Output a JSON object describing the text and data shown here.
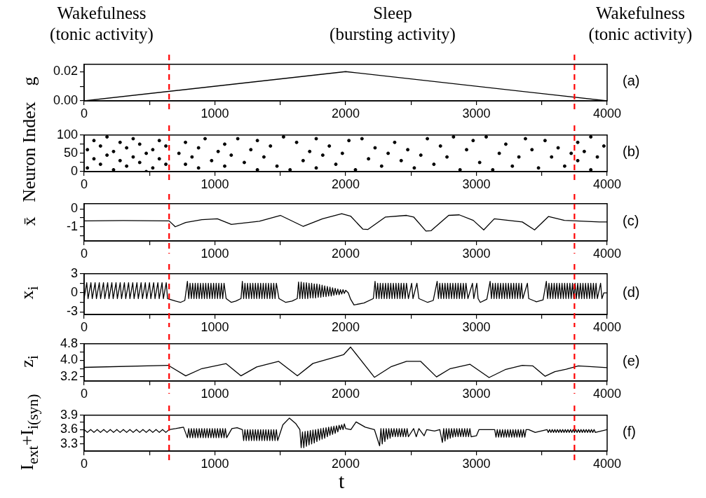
{
  "chart_data": [
    {
      "type": "line",
      "ylabel": "g",
      "annotations": [
        "Wakefulness\n(tonic activity)",
        "Sleep\n(bursting activity)",
        "Wakefulness\n(tonic activity)",
        "(a)"
      ],
      "xlim": [
        0,
        4000
      ],
      "xticks": [
        0,
        {
          "value": 500,
          "label": null
        },
        1000,
        {
          "value": 1500,
          "label": null
        },
        2000,
        {
          "value": 2500,
          "label": null
        },
        3000,
        {
          "value": 3500,
          "label": null
        },
        4000
      ],
      "ylim": [
        0,
        0.025
      ],
      "yticks": [
        {
          "value": 0,
          "label": "0.00"
        },
        {
          "value": 0.01,
          "label": null
        },
        0.02
      ],
      "ref_lines": [
        {
          "axis": "x",
          "value": 650,
          "color": "#ff0000",
          "line_style": "dashed"
        },
        {
          "axis": "x",
          "value": 3750,
          "color": "#ff0000",
          "line_style": "dashed"
        }
      ],
      "series": [
        {
          "color": "#000000",
          "x": [
            0,
            2000,
            4000
          ],
          "values": [
            0,
            0.02,
            0
          ]
        }
      ]
    },
    {
      "type": "scatter",
      "marker": "circle",
      "ylabel": "Neuron Index",
      "annotations": [
        "(b)"
      ],
      "xlim": [
        0,
        4000
      ],
      "xticks": [
        0,
        {
          "value": 500,
          "label": null
        },
        1000,
        {
          "value": 1500,
          "label": null
        },
        2000,
        {
          "value": 2500,
          "label": null
        },
        3000,
        {
          "value": 3500,
          "label": null
        },
        4000
      ],
      "ylim": [
        0,
        100
      ],
      "yticks": [
        0,
        {
          "value": 25,
          "label": null
        },
        50,
        {
          "value": 75,
          "label": null
        },
        100
      ],
      "ref_lines": [
        {
          "axis": "x",
          "value": 650,
          "color": "#ff0000",
          "line_style": "dashed"
        },
        {
          "axis": "x",
          "value": 3750,
          "color": "#ff0000",
          "line_style": "dashed"
        }
      ],
      "series": [
        {
          "color": "#000000",
          "x": [
            25,
            25,
            75,
            75,
            125,
            125,
            175,
            175,
            225,
            225,
            275,
            275,
            325,
            325,
            375,
            375,
            425,
            425,
            475,
            475,
            525,
            525,
            575,
            575,
            625,
            625,
            725,
            775,
            775,
            825,
            875,
            875,
            925,
            975,
            1025,
            1075,
            1075,
            1125,
            1175,
            1225,
            1275,
            1325,
            1325,
            1375,
            1425,
            1475,
            1525,
            1575,
            1625,
            1675,
            1725,
            1775,
            1775,
            1825,
            1875,
            1925,
            1975,
            2025,
            2075,
            2125,
            2175,
            2225,
            2275,
            2325,
            2375,
            2425,
            2475,
            2525,
            2575,
            2625,
            2675,
            2725,
            2775,
            2825,
            2875,
            2925,
            2975,
            3025,
            3075,
            3125,
            3175,
            3225,
            3275,
            3325,
            3375,
            3425,
            3475,
            3525,
            3575,
            3625,
            3675,
            3725,
            3775,
            3775,
            3825,
            3875,
            3875,
            3925,
            3975
          ],
          "values": [
            10,
            60,
            35,
            85,
            20,
            70,
            45,
            95,
            5,
            55,
            30,
            80,
            15,
            65,
            40,
            90,
            25,
            75,
            50,
            0,
            10,
            60,
            35,
            85,
            20,
            70,
            50,
            20,
            80,
            40,
            65,
            10,
            90,
            30,
            55,
            75,
            15,
            45,
            90,
            25,
            60,
            5,
            85,
            40,
            70,
            15,
            95,
            5,
            80,
            30,
            55,
            10,
            90,
            45,
            70,
            20,
            50,
            85,
            5,
            90,
            35,
            65,
            15,
            50,
            80,
            30,
            60,
            10,
            45,
            90,
            20,
            70,
            40,
            95,
            5,
            60,
            85,
            25,
            95,
            5,
            50,
            75,
            15,
            40,
            90,
            60,
            10,
            85,
            40,
            65,
            15,
            50,
            30,
            80,
            55,
            5,
            95,
            40,
            70
          ]
        }
      ]
    },
    {
      "type": "line",
      "ylabel": "x̄",
      "annotations": [
        "(c)"
      ],
      "xlim": [
        0,
        4000
      ],
      "xticks": [
        0,
        {
          "value": 500,
          "label": null
        },
        1000,
        {
          "value": 1500,
          "label": null
        },
        2000,
        {
          "value": 2500,
          "label": null
        },
        3000,
        {
          "value": 3500,
          "label": null
        },
        4000
      ],
      "ylim": [
        -1.8,
        0.3
      ],
      "yticks": [
        0,
        {
          "value": -0.5,
          "label": null
        },
        -1,
        {
          "value": -1.5,
          "label": null
        }
      ],
      "ref_lines": [
        {
          "axis": "x",
          "value": 650,
          "color": "#ff0000",
          "line_style": "dashed"
        },
        {
          "axis": "x",
          "value": 3750,
          "color": "#ff0000",
          "line_style": "dashed"
        }
      ],
      "series": [
        {
          "color": "#000000",
          "x": [
            0,
            300,
            650,
            697,
            777,
            900,
            1019,
            1126,
            1340,
            1501,
            1676,
            1823,
            1970,
            2038,
            2131,
            2171,
            2305,
            2466,
            2520,
            2614,
            2654,
            2788,
            2869,
            2976,
            3056,
            3137,
            3351,
            3445,
            3552,
            3673,
            3941,
            4000
          ],
          "values": [
            -0.67,
            -0.65,
            -0.67,
            -1.0,
            -0.76,
            -0.6,
            -0.55,
            -0.87,
            -0.69,
            -0.36,
            -0.98,
            -0.55,
            -0.27,
            -0.4,
            -1.13,
            -1.15,
            -0.45,
            -0.36,
            -0.45,
            -1.24,
            -1.22,
            -0.36,
            -0.33,
            -0.64,
            -1.18,
            -0.55,
            -0.73,
            -1.18,
            -0.42,
            -0.64,
            -0.73,
            -0.73
          ]
        }
      ]
    },
    {
      "type": "line",
      "ylabel": "x$_{i}$",
      "annotations": [
        "(d)"
      ],
      "xlim": [
        0,
        4000
      ],
      "xticks": [
        0,
        {
          "value": 500,
          "label": null
        },
        1000,
        {
          "value": 1500,
          "label": null
        },
        2000,
        {
          "value": 2500,
          "label": null
        },
        3000,
        {
          "value": 3500,
          "label": null
        },
        4000
      ],
      "ylim": [
        -3.4,
        3
      ],
      "yticks": [
        -3,
        {
          "value": -1.5,
          "label": null
        },
        0,
        {
          "value": 1.5,
          "label": null
        },
        3
      ],
      "ref_lines": [
        {
          "axis": "x",
          "value": 650,
          "color": "#ff0000",
          "line_style": "dashed"
        },
        {
          "axis": "x",
          "value": 3750,
          "color": "#ff0000",
          "line_style": "dashed"
        }
      ],
      "series": [
        {
          "color": "#000000",
          "x": [
            0,
            20,
            30,
            52,
            62,
            84,
            94,
            116,
            126,
            148,
            158,
            180,
            190,
            212,
            222,
            244,
            254,
            276,
            286,
            308,
            318,
            340,
            350,
            372,
            382,
            404,
            414,
            436,
            446,
            468,
            478,
            500,
            510,
            532,
            542,
            564,
            574,
            596,
            606,
            628,
            638,
            700,
            737,
            770,
            790,
            800,
            810,
            820,
            830,
            840,
            850,
            860,
            870,
            880,
            890,
            900,
            910,
            920,
            930,
            940,
            950,
            960,
            970,
            980,
            990,
            1000,
            1010,
            1020,
            1030,
            1040,
            1050,
            1060,
            1070,
            1086,
            1126,
            1160,
            1200,
            1210,
            1220,
            1230,
            1240,
            1250,
            1260,
            1270,
            1280,
            1290,
            1300,
            1310,
            1320,
            1330,
            1340,
            1350,
            1360,
            1370,
            1380,
            1390,
            1400,
            1410,
            1420,
            1430,
            1440,
            1450,
            1460,
            1470,
            1490,
            1542,
            1590,
            1630,
            1640,
            1650,
            1660,
            1670,
            1680,
            1690,
            1700,
            1710,
            1720,
            1730,
            1740,
            1750,
            1760,
            1770,
            1780,
            1790,
            1800,
            1810,
            1820,
            1830,
            1840,
            1850,
            1860,
            1870,
            1880,
            1890,
            1900,
            1910,
            1920,
            1930,
            1940,
            1950,
            1960,
            1970,
            1980,
            1990,
            2000,
            2020,
            2038,
            2064,
            2140,
            2212,
            2225,
            2235,
            2245,
            2255,
            2265,
            2275,
            2285,
            2295,
            2305,
            2315,
            2325,
            2335,
            2345,
            2355,
            2365,
            2375,
            2385,
            2395,
            2405,
            2415,
            2425,
            2435,
            2445,
            2455,
            2465,
            2480,
            2505,
            2515,
            2545,
            2560,
            2627,
            2670,
            2700,
            2710,
            2720,
            2730,
            2740,
            2750,
            2760,
            2770,
            2780,
            2790,
            2800,
            2810,
            2820,
            2830,
            2840,
            2850,
            2860,
            2870,
            2880,
            2890,
            2900,
            2910,
            2920,
            2935,
            2970,
            2980,
            3003,
            3013,
            3030,
            3080,
            3105,
            3115,
            3125,
            3135,
            3145,
            3155,
            3165,
            3175,
            3185,
            3195,
            3205,
            3215,
            3225,
            3235,
            3245,
            3255,
            3265,
            3275,
            3285,
            3295,
            3305,
            3315,
            3325,
            3335,
            3345,
            3355,
            3390,
            3400,
            3459,
            3510,
            3535,
            3545,
            3555,
            3565,
            3575,
            3585,
            3595,
            3605,
            3615,
            3625,
            3635,
            3645,
            3655,
            3665,
            3675,
            3685,
            3695,
            3705,
            3715,
            3725,
            3735,
            3745,
            3755,
            3765,
            3775,
            3785,
            3795,
            3805,
            3815,
            3825,
            3835,
            3845,
            3855,
            3865,
            3875,
            3885,
            3895,
            3905,
            3915,
            3925,
            3950,
            3960,
            3975,
            4000
          ],
          "values": [
            -0.9,
            1.6,
            -0.9,
            1.6,
            -0.9,
            1.6,
            -0.9,
            1.6,
            -0.9,
            1.6,
            -0.9,
            1.6,
            -0.9,
            1.6,
            -0.9,
            1.6,
            -0.9,
            1.6,
            -0.9,
            1.6,
            -0.9,
            1.6,
            -0.9,
            1.6,
            -0.9,
            1.6,
            -0.9,
            1.6,
            -0.9,
            1.6,
            -0.9,
            1.6,
            -0.9,
            1.6,
            -0.9,
            1.6,
            -0.9,
            1.6,
            -0.9,
            1.6,
            -0.9,
            -1.3,
            -1.5,
            -1.2,
            1.8,
            -0.9,
            1.5,
            -0.9,
            1.5,
            -0.9,
            1.5,
            -0.9,
            1.5,
            -0.9,
            1.5,
            -0.9,
            1.5,
            -0.9,
            1.5,
            -0.9,
            1.5,
            -0.9,
            1.5,
            -0.9,
            1.5,
            -0.9,
            1.5,
            -0.9,
            1.5,
            -0.9,
            1.5,
            -0.9,
            1.5,
            -0.9,
            -1.5,
            -1.3,
            -0.9,
            1.8,
            -0.9,
            1.5,
            -0.9,
            1.5,
            -0.9,
            1.5,
            -0.9,
            1.5,
            -0.9,
            1.5,
            -0.9,
            1.5,
            -0.9,
            1.5,
            -0.9,
            1.5,
            -0.9,
            1.5,
            -0.9,
            1.5,
            -0.9,
            1.5,
            -0.9,
            1.5,
            -0.9,
            1.5,
            -0.9,
            -1.5,
            -1.3,
            -0.9,
            1.7,
            -0.9,
            1.7,
            -0.9,
            1.6,
            -0.9,
            1.6,
            -0.9,
            1.5,
            -0.8,
            1.5,
            -0.8,
            1.4,
            -0.8,
            1.4,
            -0.7,
            1.3,
            -0.7,
            1.2,
            -0.6,
            1.1,
            -0.6,
            1.0,
            -0.5,
            0.9,
            -0.5,
            0.8,
            -0.4,
            0.7,
            -0.3,
            0.6,
            -0.3,
            0.5,
            -0.2,
            0.5,
            -0.1,
            0.4,
            0.0,
            -1.0,
            -1.9,
            -1.6,
            -0.9,
            1.8,
            -0.9,
            1.5,
            -0.9,
            1.5,
            -0.9,
            1.5,
            -0.9,
            1.5,
            -0.9,
            1.5,
            -0.9,
            1.5,
            -0.9,
            1.5,
            -0.9,
            1.5,
            -0.9,
            1.5,
            -0.9,
            1.5,
            -0.9,
            1.5,
            -0.9,
            1.5,
            -0.9,
            1.5,
            -0.9,
            1.5,
            -0.9,
            -1.5,
            -1.2,
            1.8,
            -0.9,
            1.5,
            -0.9,
            1.5,
            -0.9,
            1.5,
            -0.9,
            1.5,
            -0.9,
            1.5,
            -0.9,
            1.5,
            -0.9,
            1.5,
            -0.9,
            1.5,
            -0.9,
            1.5,
            -0.9,
            1.5,
            -0.9,
            1.5,
            -0.9,
            1.5,
            -0.9,
            1.5,
            -0.9,
            -1.5,
            -1.0,
            1.8,
            -0.9,
            1.5,
            -0.9,
            1.5,
            -0.9,
            1.5,
            -0.9,
            1.5,
            -0.9,
            1.5,
            -0.9,
            1.5,
            -0.9,
            1.5,
            -0.9,
            1.5,
            -0.9,
            1.5,
            -0.9,
            1.5,
            -0.9,
            1.5,
            -0.9,
            1.5,
            -0.9,
            1.5,
            -0.9,
            -1.4,
            -1.1,
            1.8,
            -0.9,
            1.5,
            -0.9,
            1.5,
            -0.9,
            1.5,
            -0.9,
            1.5,
            -0.9,
            1.5,
            -0.9,
            1.5,
            -0.9,
            1.5,
            -0.9,
            1.5,
            -0.9,
            1.5,
            -0.9,
            1.5,
            -0.9,
            1.5,
            -0.9,
            1.5,
            -0.9,
            1.5,
            -0.9,
            1.5,
            -0.9,
            1.5,
            -0.9,
            1.5,
            -0.9,
            1.5,
            -0.9,
            1.5,
            -0.9,
            1.5,
            -0.9,
            1.5,
            -0.9,
            0,
            0
          ]
        }
      ]
    },
    {
      "type": "line",
      "ylabel": "z$_{i}$",
      "annotations": [
        "(e)"
      ],
      "xlim": [
        0,
        4000
      ],
      "xticks": [
        0,
        {
          "value": 500,
          "label": null
        },
        1000,
        {
          "value": 1500,
          "label": null
        },
        2000,
        {
          "value": 2500,
          "label": null
        },
        3000,
        {
          "value": 3500,
          "label": null
        },
        4000
      ],
      "ylim": [
        3.0,
        4.8
      ],
      "yticks": [
        3.2,
        {
          "value": 3.6,
          "label": null
        },
        {
          "value": 4,
          "label": "4.0"
        },
        {
          "value": 4.4,
          "label": null
        },
        4.8
      ],
      "ref_lines": [
        {
          "axis": "x",
          "value": 650,
          "color": "#ff0000",
          "line_style": "dashed"
        },
        {
          "axis": "x",
          "value": 3750,
          "color": "#ff0000",
          "line_style": "dashed"
        }
      ],
      "series": [
        {
          "color": "#000000",
          "x": [
            0,
            643,
            777,
            900,
            1086,
            1199,
            1320,
            1488,
            1631,
            1750,
            1877,
            1984,
            2038,
            2220,
            2350,
            2466,
            2574,
            2695,
            2800,
            2950,
            3097,
            3220,
            3351,
            3432,
            3526,
            3600,
            3687,
            3780,
            4000
          ],
          "values": [
            3.66,
            3.76,
            3.25,
            3.6,
            3.84,
            3.25,
            3.68,
            3.95,
            3.25,
            3.85,
            4.08,
            4.27,
            4.64,
            3.18,
            3.7,
            3.95,
            3.95,
            3.2,
            3.6,
            3.81,
            3.17,
            3.55,
            3.76,
            3.73,
            3.23,
            3.45,
            3.57,
            3.73,
            3.65
          ]
        }
      ]
    },
    {
      "type": "line",
      "ylabel": "I$_{ext}$+I$_{i(syn)}$",
      "xlabel": "t",
      "annotations": [
        "(f)"
      ],
      "xlim": [
        0,
        4000
      ],
      "xticks": [
        0,
        {
          "value": 500,
          "label": null
        },
        1000,
        {
          "value": 1500,
          "label": null
        },
        2000,
        {
          "value": 2500,
          "label": null
        },
        3000,
        {
          "value": 3500,
          "label": null
        },
        4000
      ],
      "ylim": [
        3.15,
        3.9
      ],
      "yticks": [
        3.3,
        {
          "value": 3.45,
          "label": null
        },
        3.6,
        {
          "value": 3.75,
          "label": null
        },
        3.9
      ],
      "ref_lines": [
        {
          "axis": "x",
          "value": 650,
          "color": "#ff0000",
          "line_style": "dashed"
        },
        {
          "axis": "x",
          "value": 3750,
          "color": "#ff0000",
          "line_style": "dashed"
        }
      ],
      "series": [
        {
          "color": "#000000",
          "x": [
            0,
            25,
            50,
            75,
            100,
            125,
            150,
            175,
            200,
            225,
            250,
            275,
            300,
            325,
            350,
            375,
            400,
            425,
            450,
            475,
            500,
            525,
            550,
            575,
            600,
            625,
            650,
            700,
            760,
            790,
            800,
            810,
            820,
            830,
            840,
            850,
            860,
            870,
            880,
            890,
            900,
            910,
            920,
            930,
            940,
            950,
            960,
            970,
            980,
            990,
            1000,
            1010,
            1020,
            1030,
            1040,
            1050,
            1060,
            1070,
            1080,
            1090,
            1130,
            1170,
            1210,
            1220,
            1230,
            1240,
            1250,
            1260,
            1270,
            1280,
            1290,
            1300,
            1310,
            1320,
            1330,
            1340,
            1350,
            1360,
            1370,
            1380,
            1390,
            1400,
            1410,
            1420,
            1430,
            1440,
            1450,
            1460,
            1470,
            1480,
            1520,
            1570,
            1620,
            1650,
            1660,
            1670,
            1680,
            1690,
            1700,
            1710,
            1720,
            1730,
            1740,
            1750,
            1760,
            1770,
            1780,
            1790,
            1800,
            1810,
            1820,
            1830,
            1840,
            1850,
            1860,
            1870,
            1880,
            1890,
            1900,
            1910,
            1920,
            1930,
            1940,
            1950,
            1960,
            1970,
            1980,
            1990,
            2000,
            2040,
            2080,
            2150,
            2220,
            2260,
            2270,
            2280,
            2290,
            2300,
            2310,
            2320,
            2330,
            2340,
            2350,
            2360,
            2370,
            2380,
            2390,
            2400,
            2410,
            2420,
            2430,
            2440,
            2450,
            2460,
            2470,
            2480,
            2520,
            2540,
            2560,
            2600,
            2620,
            2680,
            2720,
            2740,
            2750,
            2760,
            2770,
            2780,
            2790,
            2800,
            2810,
            2820,
            2830,
            2840,
            2850,
            2860,
            2870,
            2880,
            2890,
            2900,
            2910,
            2920,
            2930,
            2940,
            2950,
            2960,
            3000,
            3020,
            3140,
            3150,
            3160,
            3170,
            3180,
            3190,
            3200,
            3210,
            3220,
            3230,
            3240,
            3250,
            3260,
            3270,
            3280,
            3290,
            3300,
            3310,
            3320,
            3330,
            3340,
            3350,
            3360,
            3370,
            3380,
            3390,
            3400,
            3450,
            3540,
            3550,
            3560,
            3570,
            3580,
            3590,
            3600,
            3610,
            3620,
            3630,
            3640,
            3650,
            3660,
            3670,
            3680,
            3690,
            3700,
            3710,
            3720,
            3730,
            3740,
            3750,
            3760,
            3770,
            3780,
            3790,
            3800,
            3810,
            3820,
            3830,
            3840,
            3850,
            3860,
            3870,
            3880,
            3890,
            3900,
            3910,
            4000
          ],
          "values": [
            3.6,
            3.54,
            3.6,
            3.54,
            3.6,
            3.54,
            3.6,
            3.54,
            3.6,
            3.54,
            3.6,
            3.54,
            3.6,
            3.54,
            3.6,
            3.54,
            3.6,
            3.54,
            3.6,
            3.54,
            3.6,
            3.54,
            3.6,
            3.54,
            3.6,
            3.54,
            3.6,
            3.62,
            3.65,
            3.43,
            3.62,
            3.43,
            3.62,
            3.43,
            3.62,
            3.43,
            3.62,
            3.43,
            3.62,
            3.43,
            3.62,
            3.43,
            3.62,
            3.43,
            3.62,
            3.43,
            3.62,
            3.43,
            3.62,
            3.43,
            3.62,
            3.43,
            3.62,
            3.43,
            3.62,
            3.43,
            3.62,
            3.43,
            3.62,
            3.43,
            3.62,
            3.64,
            3.6,
            3.37,
            3.6,
            3.37,
            3.6,
            3.37,
            3.6,
            3.37,
            3.6,
            3.37,
            3.6,
            3.37,
            3.6,
            3.37,
            3.6,
            3.37,
            3.6,
            3.37,
            3.6,
            3.37,
            3.6,
            3.37,
            3.6,
            3.37,
            3.6,
            3.37,
            3.6,
            3.37,
            3.7,
            3.84,
            3.72,
            3.6,
            3.22,
            3.55,
            3.22,
            3.56,
            3.25,
            3.57,
            3.28,
            3.58,
            3.3,
            3.59,
            3.32,
            3.6,
            3.35,
            3.61,
            3.38,
            3.62,
            3.4,
            3.63,
            3.42,
            3.64,
            3.45,
            3.65,
            3.48,
            3.66,
            3.5,
            3.67,
            3.52,
            3.68,
            3.55,
            3.69,
            3.6,
            3.7,
            3.6,
            3.72,
            3.62,
            3.6,
            3.76,
            3.65,
            3.6,
            3.26,
            3.62,
            3.3,
            3.62,
            3.35,
            3.62,
            3.4,
            3.62,
            3.42,
            3.62,
            3.45,
            3.62,
            3.45,
            3.62,
            3.45,
            3.62,
            3.45,
            3.62,
            3.45,
            3.62,
            3.45,
            3.62,
            3.45,
            3.62,
            3.45,
            3.62,
            3.47,
            3.6,
            3.57,
            3.6,
            3.33,
            3.62,
            3.36,
            3.62,
            3.4,
            3.62,
            3.42,
            3.62,
            3.44,
            3.62,
            3.45,
            3.62,
            3.45,
            3.62,
            3.45,
            3.62,
            3.45,
            3.62,
            3.45,
            3.62,
            3.45,
            3.62,
            3.45,
            3.47,
            3.6,
            3.6,
            3.44,
            3.6,
            3.44,
            3.6,
            3.44,
            3.6,
            3.44,
            3.6,
            3.44,
            3.6,
            3.44,
            3.6,
            3.44,
            3.6,
            3.44,
            3.6,
            3.44,
            3.6,
            3.44,
            3.6,
            3.44,
            3.6,
            3.44,
            3.6,
            3.6,
            3.6,
            3.54,
            3.6,
            3.54,
            3.6,
            3.54,
            3.6,
            3.54,
            3.6,
            3.54,
            3.6,
            3.54,
            3.6,
            3.54,
            3.6,
            3.54,
            3.6,
            3.54,
            3.6,
            3.54,
            3.6,
            3.54,
            3.6,
            3.54,
            3.6,
            3.54,
            3.6,
            3.54,
            3.6,
            3.54,
            3.6,
            3.54,
            3.6,
            3.54,
            3.6,
            3.54,
            3.6,
            3.54,
            3.6,
            3.54,
            3.6
          ]
        }
      ]
    }
  ]
}
